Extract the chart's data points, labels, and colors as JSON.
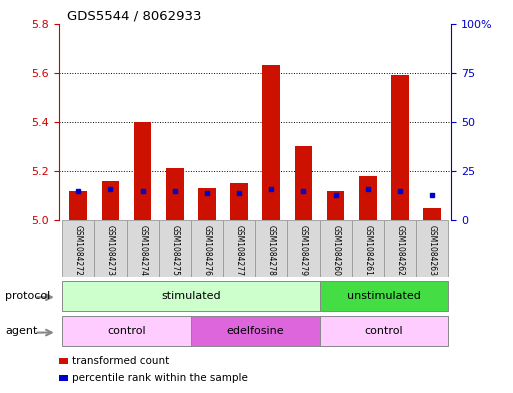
{
  "title": "GDS5544 / 8062933",
  "samples": [
    "GSM1084272",
    "GSM1084273",
    "GSM1084274",
    "GSM1084275",
    "GSM1084276",
    "GSM1084277",
    "GSM1084278",
    "GSM1084279",
    "GSM1084260",
    "GSM1084261",
    "GSM1084262",
    "GSM1084263"
  ],
  "transformed_counts": [
    5.12,
    5.16,
    5.4,
    5.21,
    5.13,
    5.15,
    5.63,
    5.3,
    5.12,
    5.18,
    5.59,
    5.05
  ],
  "percentile_ranks": [
    15,
    16,
    15,
    15,
    14,
    14,
    16,
    15,
    13,
    16,
    15,
    13
  ],
  "ylim_left": [
    5.0,
    5.8
  ],
  "yticks_left": [
    5.0,
    5.2,
    5.4,
    5.6,
    5.8
  ],
  "ylim_right": [
    0,
    100
  ],
  "yticks_right": [
    0,
    25,
    50,
    75,
    100
  ],
  "ytick_labels_right": [
    "0",
    "25",
    "50",
    "75",
    "100%"
  ],
  "bar_color": "#cc1100",
  "percentile_color": "#0000cc",
  "base_value": 5.0,
  "protocol_groups": [
    {
      "label": "stimulated",
      "start": 0,
      "end": 8,
      "color": "#ccffcc"
    },
    {
      "label": "unstimulated",
      "start": 8,
      "end": 12,
      "color": "#44dd44"
    }
  ],
  "agent_groups": [
    {
      "label": "control",
      "start": 0,
      "end": 4,
      "color": "#ffccff"
    },
    {
      "label": "edelfosine",
      "start": 4,
      "end": 8,
      "color": "#dd66dd"
    },
    {
      "label": "control",
      "start": 8,
      "end": 12,
      "color": "#ffccff"
    }
  ],
  "protocol_label": "protocol",
  "agent_label": "agent",
  "legend_transformed": "transformed count",
  "legend_percentile": "percentile rank within the sample",
  "bar_width": 0.55,
  "bg_color": "#ffffff",
  "left_tick_color": "#cc0000",
  "right_tick_color": "#0000cc"
}
